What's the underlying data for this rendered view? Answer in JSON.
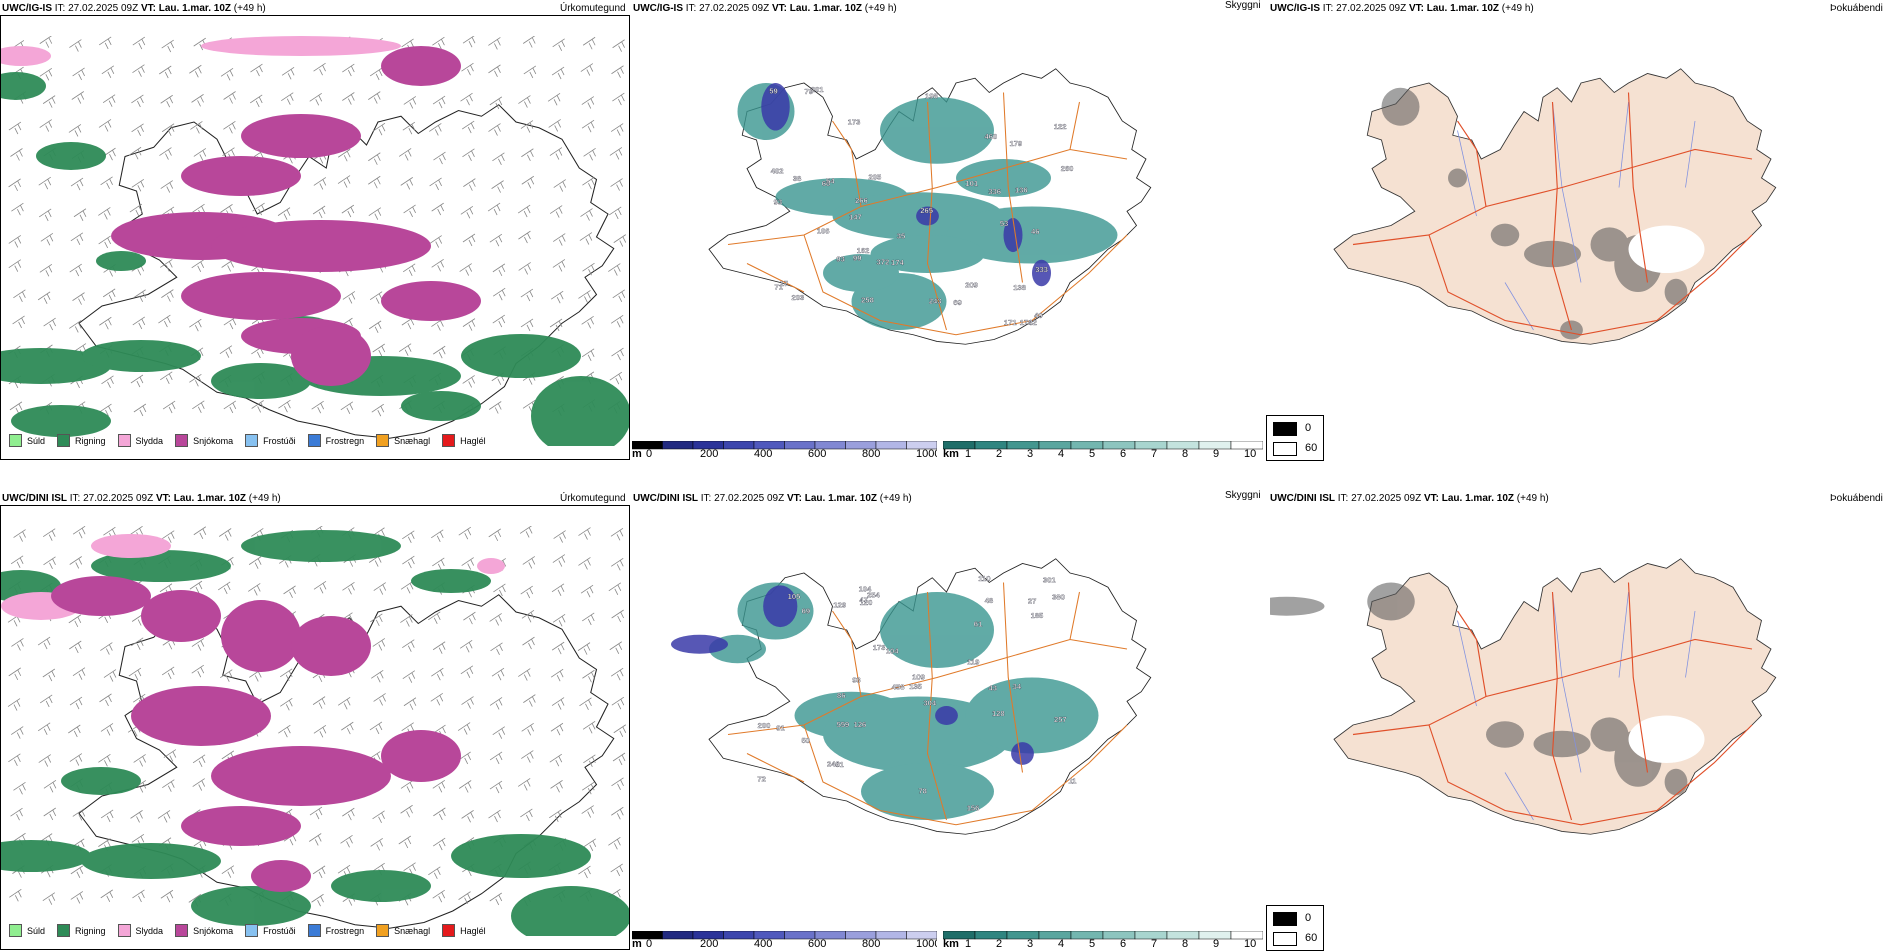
{
  "rows": [
    {
      "model": "UWC/IG-IS",
      "it_label": "IT:",
      "it_value": "27.02.2025 09Z",
      "vt_label": "VT:",
      "vt_value": "Lau. 1.mar. 10Z",
      "lead": "(+49 h)",
      "panel_left_title": "Úrkomutegund",
      "panel_mid_title": "Skyggni",
      "panel_right_title": "Þokuábendi",
      "vis_labels": [
        "35",
        "60",
        "79",
        "53",
        "82",
        "173",
        "174",
        "147",
        "99",
        "336",
        "136",
        "198",
        "59",
        "171",
        "266",
        "209",
        "265",
        "260",
        "122",
        "205",
        "174",
        "54",
        "69",
        "93",
        "138",
        "101",
        "243",
        "17",
        "179",
        "71",
        "162",
        "372",
        "203",
        "333",
        "460",
        "402",
        "38",
        "201",
        "106",
        "258",
        "93",
        "49",
        "46"
      ]
    },
    {
      "model": "UWC/DINI ISL",
      "it_label": "IT:",
      "it_value": "27.02.2025 09Z",
      "vt_label": "VT:",
      "vt_value": "Lau. 1.mar. 10Z",
      "lead": "(+49 h)",
      "panel_left_title": "Úrkomutegund",
      "panel_mid_title": "Skyggni",
      "panel_right_title": "Þokuábendi",
      "vis_labels": [
        "135",
        "200",
        "105",
        "93",
        "156",
        "185",
        "72",
        "11",
        "128",
        "301",
        "126",
        "91",
        "173",
        "257",
        "50",
        "110",
        "129",
        "104",
        "86",
        "304",
        "380",
        "254",
        "69",
        "120",
        "47",
        "104",
        "34",
        "78",
        "119",
        "43",
        "81",
        "559",
        "458",
        "27",
        "109",
        "246",
        "61",
        "48"
      ]
    }
  ],
  "precip_legend": [
    {
      "label": "Súld",
      "color": "#90ee90"
    },
    {
      "label": "Rigning",
      "color": "#2e8b57"
    },
    {
      "label": "Slydda",
      "color": "#f4a6d7"
    },
    {
      "label": "Snjókoma",
      "color": "#b8479a"
    },
    {
      "label": "Frostúði",
      "color": "#87c1f0"
    },
    {
      "label": "Frostregn",
      "color": "#3b7bd6"
    },
    {
      "label": "Snæhagl",
      "color": "#f0a020"
    },
    {
      "label": "Haglél",
      "color": "#e41a1c"
    }
  ],
  "ceiling_bar": {
    "unit": "m",
    "ticks": [
      "0",
      "200",
      "400",
      "600",
      "800",
      "1000"
    ]
  },
  "visibility_bar": {
    "unit": "km",
    "ticks": [
      "1",
      "2",
      "3",
      "4",
      "5",
      "6",
      "7",
      "8",
      "9",
      "10"
    ]
  },
  "fog_legend": {
    "ticks": [
      "0",
      "60"
    ]
  },
  "colors": {
    "snow": "#b8479a",
    "rain": "#2e8b57",
    "sleet": "#f4a6d7",
    "vis_teal": "#3a9690",
    "vis_blue": "#3a3aa8",
    "roads": "#e07a2a",
    "land_fog": "#f5e1d2",
    "rivers": "#8090e0"
  }
}
